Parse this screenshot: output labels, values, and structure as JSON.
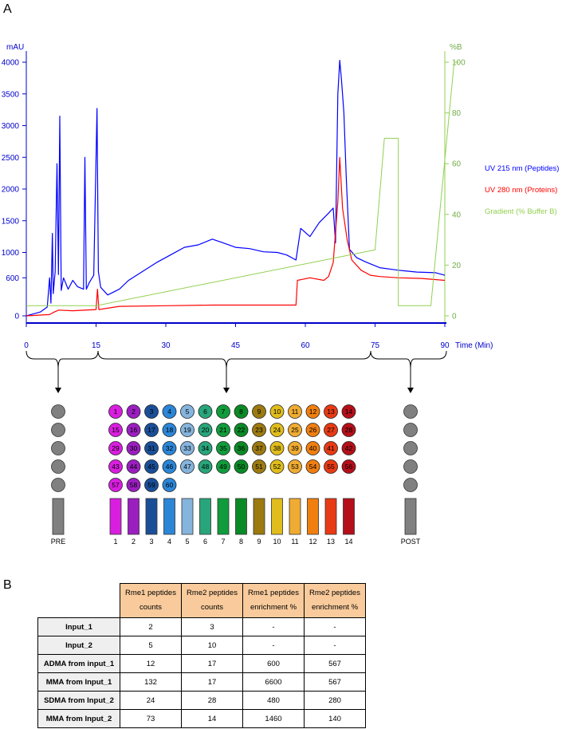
{
  "panel_labels": {
    "a": "A",
    "b": "B"
  },
  "chart_data": {
    "type": "line",
    "x_label": "Time (Min)",
    "y_left_label": "mAU",
    "y_right_label": "%B",
    "x_ticks": [
      0,
      15,
      30,
      45,
      60,
      75,
      90
    ],
    "y_left_ticks": [
      0,
      600,
      1000,
      1500,
      2000,
      2500,
      3000,
      3500,
      4000
    ],
    "y_right_ticks": [
      0,
      20,
      40,
      60,
      80,
      100
    ],
    "xlim": [
      0,
      90
    ],
    "legend_position": "right",
    "series": [
      {
        "name": "UV 215 nm (Peptides)",
        "color": "#0000ff",
        "axis": "left",
        "points": [
          [
            0,
            0
          ],
          [
            1.5,
            30
          ],
          [
            3,
            60
          ],
          [
            4.5,
            140
          ],
          [
            5,
            600
          ],
          [
            5.3,
            200
          ],
          [
            5.6,
            1300
          ],
          [
            5.8,
            350
          ],
          [
            6.2,
            700
          ],
          [
            6.6,
            2400
          ],
          [
            6.9,
            650
          ],
          [
            7.2,
            3150
          ],
          [
            7.5,
            400
          ],
          [
            8,
            600
          ],
          [
            9,
            420
          ],
          [
            10,
            560
          ],
          [
            11,
            460
          ],
          [
            12.3,
            420
          ],
          [
            12.6,
            2500
          ],
          [
            12.9,
            420
          ],
          [
            13.5,
            520
          ],
          [
            14.5,
            640
          ],
          [
            15.2,
            3270
          ],
          [
            15.5,
            700
          ],
          [
            16,
            450
          ],
          [
            17.5,
            330
          ],
          [
            20,
            420
          ],
          [
            22,
            560
          ],
          [
            25,
            700
          ],
          [
            28,
            840
          ],
          [
            31,
            960
          ],
          [
            34,
            1080
          ],
          [
            37,
            1120
          ],
          [
            40,
            1210
          ],
          [
            42,
            1160
          ],
          [
            45,
            1080
          ],
          [
            48,
            1060
          ],
          [
            51,
            1010
          ],
          [
            54,
            1000
          ],
          [
            56,
            960
          ],
          [
            58,
            880
          ],
          [
            59,
            1380
          ],
          [
            61,
            1250
          ],
          [
            63,
            1470
          ],
          [
            65,
            1620
          ],
          [
            66,
            1700
          ],
          [
            66.5,
            1150
          ],
          [
            67,
            3500
          ],
          [
            67.4,
            4030
          ],
          [
            67.8,
            3700
          ],
          [
            68.3,
            3200
          ],
          [
            68.8,
            2200
          ],
          [
            69.5,
            1050
          ],
          [
            71,
            920
          ],
          [
            73,
            850
          ],
          [
            76,
            760
          ],
          [
            80,
            720
          ],
          [
            84,
            690
          ],
          [
            88,
            680
          ],
          [
            90,
            640
          ]
        ]
      },
      {
        "name": "UV 280 nm (Proteins)",
        "color": "#ff0000",
        "axis": "left",
        "points": [
          [
            0,
            0
          ],
          [
            5,
            20
          ],
          [
            6,
            60
          ],
          [
            7,
            90
          ],
          [
            10,
            80
          ],
          [
            15,
            100
          ],
          [
            15.3,
            420
          ],
          [
            15.6,
            100
          ],
          [
            20,
            150
          ],
          [
            30,
            160
          ],
          [
            40,
            170
          ],
          [
            50,
            170
          ],
          [
            58,
            170
          ],
          [
            58.3,
            560
          ],
          [
            61,
            600
          ],
          [
            64,
            560
          ],
          [
            65,
            620
          ],
          [
            66,
            840
          ],
          [
            67,
            1800
          ],
          [
            67.4,
            2500
          ],
          [
            68,
            1700
          ],
          [
            69,
            1200
          ],
          [
            70,
            880
          ],
          [
            72,
            720
          ],
          [
            74,
            640
          ],
          [
            76,
            620
          ],
          [
            80,
            600
          ],
          [
            85,
            590
          ],
          [
            90,
            560
          ]
        ]
      },
      {
        "name": "Gradient (% Buffer B)",
        "color": "#92d050",
        "axis": "right",
        "points": [
          [
            0,
            4
          ],
          [
            15,
            4
          ],
          [
            75,
            26
          ],
          [
            77,
            70
          ],
          [
            80,
            70
          ],
          [
            80,
            4
          ],
          [
            87,
            4
          ],
          [
            92,
            100
          ],
          [
            93,
            100
          ]
        ]
      }
    ]
  },
  "time_groups": {
    "pre": "PRE",
    "post": "POST"
  },
  "fractions": {
    "tube_labels": [
      "1",
      "2",
      "3",
      "4",
      "5",
      "6",
      "7",
      "8",
      "9",
      "10",
      "11",
      "12",
      "13",
      "14"
    ],
    "tube_colors": [
      "#d91ee0",
      "#9b1fc0",
      "#1a4f98",
      "#2b86d8",
      "#85b4dd",
      "#28a57a",
      "#109c3c",
      "#0a8a26",
      "#9c7a10",
      "#e0bd1c",
      "#f0ac32",
      "#f07f10",
      "#e83a14",
      "#b50f1a"
    ],
    "grid_rows": [
      [
        "1",
        "2",
        "3",
        "4",
        "5",
        "6",
        "7",
        "8",
        "9",
        "10",
        "11",
        "12",
        "13",
        "14"
      ],
      [
        "15",
        "16",
        "17",
        "18",
        "19",
        "20",
        "21",
        "22",
        "23",
        "24",
        "25",
        "26",
        "27",
        "28"
      ],
      [
        "29",
        "30",
        "31",
        "32",
        "33",
        "34",
        "35",
        "36",
        "37",
        "38",
        "39",
        "40",
        "41",
        "42"
      ],
      [
        "43",
        "44",
        "45",
        "46",
        "47",
        "48",
        "49",
        "50",
        "51",
        "52",
        "53",
        "54",
        "55",
        "56"
      ],
      [
        "57",
        "58",
        "59",
        "60"
      ]
    ]
  },
  "table": {
    "columns": [
      "Rme1 peptides counts",
      "Rme2 peptides counts",
      "Rme1 peptides enrichment %",
      "Rme2 peptides enrichment %"
    ],
    "rows": [
      {
        "label": "Input_1",
        "values": [
          "2",
          "3",
          "-",
          "-"
        ]
      },
      {
        "label": "Input_2",
        "values": [
          "5",
          "10",
          "-",
          "-"
        ]
      },
      {
        "label": "ADMA from input_1",
        "values": [
          "12",
          "17",
          "600",
          "567"
        ]
      },
      {
        "label": "MMA from Input_1",
        "values": [
          "132",
          "17",
          "6600",
          "567"
        ]
      },
      {
        "label": "SDMA from Input_2",
        "values": [
          "24",
          "28",
          "480",
          "280"
        ]
      },
      {
        "label": "MMA from Input_2",
        "values": [
          "73",
          "14",
          "1460",
          "140"
        ]
      }
    ]
  }
}
